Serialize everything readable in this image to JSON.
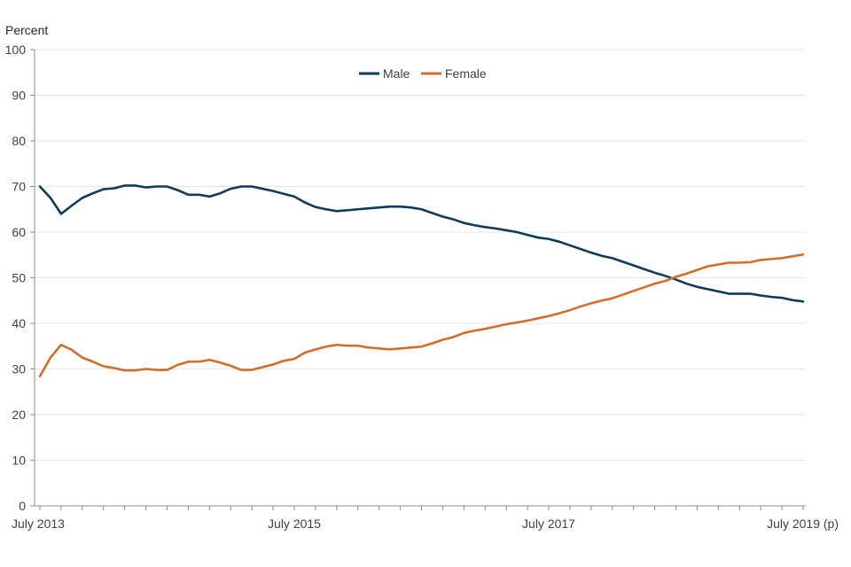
{
  "chart_data": {
    "type": "line",
    "title": "",
    "ylabel": "Percent",
    "xlabel": "",
    "ylim": [
      0,
      100
    ],
    "yticks": [
      0,
      10,
      20,
      30,
      40,
      50,
      60,
      70,
      80,
      90,
      100
    ],
    "x_tick_labels": [
      {
        "label": "July 2013",
        "index": 0
      },
      {
        "label": "July 2015",
        "index": 24
      },
      {
        "label": "July 2017",
        "index": 48
      },
      {
        "label": "July 2019 (p)",
        "index": 72
      }
    ],
    "x_count": 73,
    "grid": true,
    "legend_position": "top-center",
    "series": [
      {
        "name": "Male",
        "color": "#0e3b5b",
        "values": [
          70,
          67.5,
          64,
          65.8,
          67.5,
          68.5,
          69.4,
          69.6,
          70.2,
          70.2,
          69.8,
          70,
          70,
          69.2,
          68.2,
          68.2,
          67.8,
          68.5,
          69.5,
          70,
          70,
          69.5,
          69,
          68.4,
          67.8,
          66.5,
          65.5,
          65,
          64.6,
          64.8,
          65,
          65.2,
          65.4,
          65.6,
          65.6,
          65.4,
          65,
          64.2,
          63.4,
          62.8,
          62,
          61.5,
          61.1,
          60.8,
          60.4,
          60,
          59.4,
          58.8,
          58.5,
          57.9,
          57.1,
          56.3,
          55.5,
          54.8,
          54.3,
          53.5,
          52.7,
          51.9,
          51.1,
          50.4,
          49.6,
          48.7,
          48,
          47.5,
          47,
          46.5,
          46.5,
          46.5,
          46.1,
          45.8,
          45.6,
          45.1,
          44.8
        ]
      },
      {
        "name": "Female",
        "color": "#d86c24",
        "values": [
          28.4,
          32.5,
          35.3,
          34.2,
          32.5,
          31.6,
          30.6,
          30.2,
          29.7,
          29.7,
          30,
          29.8,
          29.8,
          30.9,
          31.6,
          31.6,
          32,
          31.4,
          30.7,
          29.8,
          29.8,
          30.4,
          31,
          31.8,
          32.2,
          33.6,
          34.3,
          34.9,
          35.3,
          35.1,
          35.1,
          34.7,
          34.5,
          34.3,
          34.5,
          34.7,
          34.9,
          35.6,
          36.4,
          37,
          37.9,
          38.4,
          38.8,
          39.3,
          39.8,
          40.2,
          40.6,
          41.1,
          41.6,
          42.2,
          42.9,
          43.7,
          44.4,
          45,
          45.5,
          46.3,
          47.1,
          47.9,
          48.7,
          49.3,
          50.2,
          50.9,
          51.7,
          52.5,
          52.9,
          53.3,
          53.3,
          53.4,
          53.9,
          54.1,
          54.3,
          54.7,
          55.1
        ]
      }
    ]
  }
}
